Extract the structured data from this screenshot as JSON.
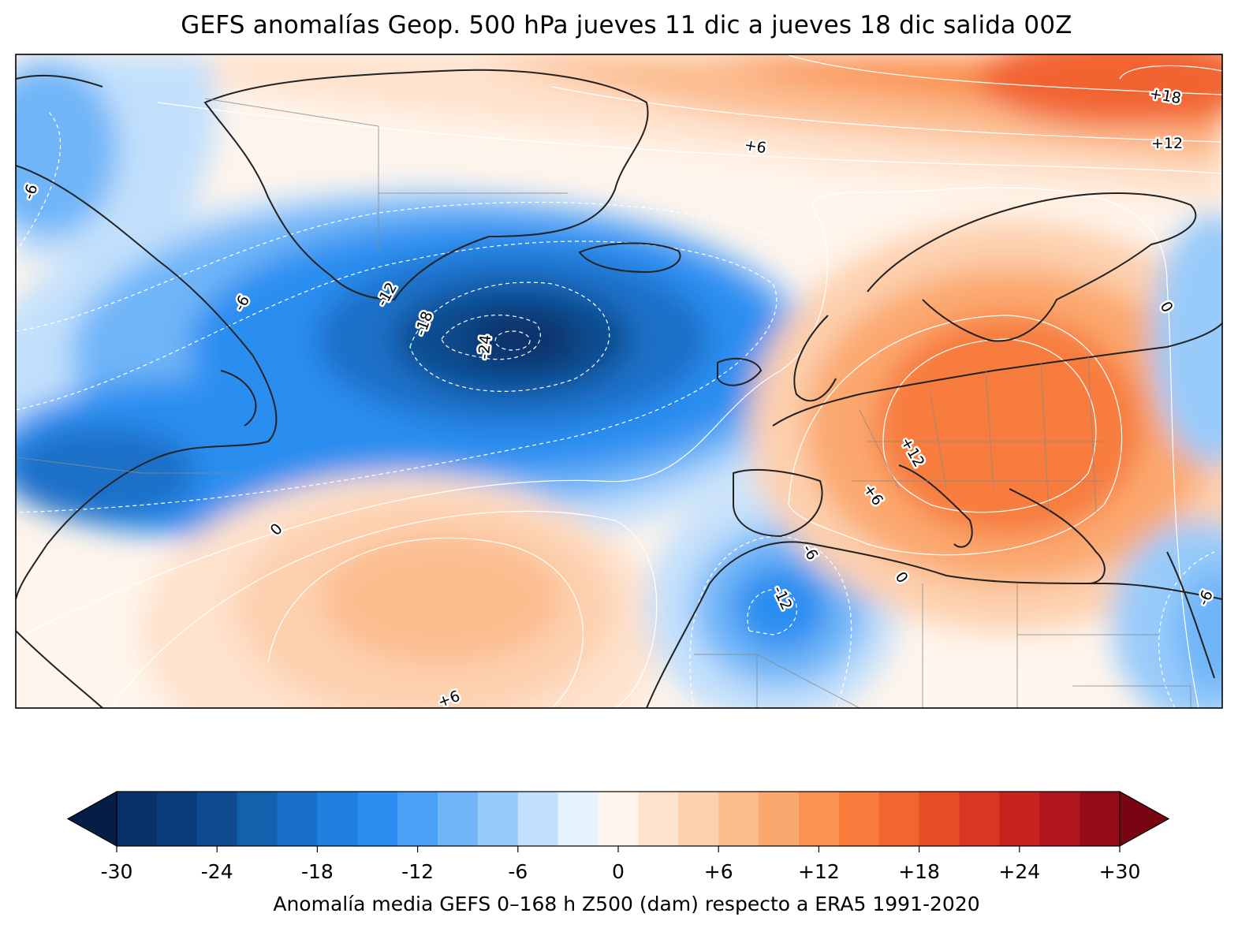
{
  "title": "GEFS anomalías Geop. 500 hPa jueves 11 dic a jueves 18 dic salida 00Z",
  "colorbar": {
    "label": "Anomalía media GEFS 0–168 h Z500 (dam) respecto a ERA5 1991-2020",
    "ticks": [
      "-30",
      "-24",
      "-18",
      "-12",
      "-6",
      "0",
      "+6",
      "+12",
      "+18",
      "+24",
      "+30"
    ],
    "range": [
      -30,
      30
    ],
    "step": 2,
    "colors": [
      "#08306b",
      "#0b3a7a",
      "#0f4b8e",
      "#1360ad",
      "#1a70c8",
      "#1f80e0",
      "#2b8ef0",
      "#4aa0f5",
      "#6fb5f8",
      "#98cbfa",
      "#c2e0fc",
      "#e6f2fe",
      "#fff5ec",
      "#fee2cc",
      "#fdd0ae",
      "#fcbc8e",
      "#fba86e",
      "#fa9352",
      "#f77c3c",
      "#f26430",
      "#e84c28",
      "#d93624",
      "#c8241f",
      "#b0161b",
      "#950b18"
    ],
    "under_color": "#061e45",
    "over_color": "#7a0512"
  },
  "contour_labels": [
    {
      "text": "+18"
    },
    {
      "text": "+12"
    },
    {
      "text": "+6"
    },
    {
      "text": "-6"
    },
    {
      "text": "-6"
    },
    {
      "text": "-12"
    },
    {
      "text": "-18"
    },
    {
      "text": "-24"
    },
    {
      "text": "0"
    },
    {
      "text": "0"
    },
    {
      "text": "+12"
    },
    {
      "text": "+6"
    },
    {
      "text": "-6"
    },
    {
      "text": "-12"
    },
    {
      "text": "0"
    },
    {
      "text": "+6"
    },
    {
      "text": "-6"
    }
  ]
}
